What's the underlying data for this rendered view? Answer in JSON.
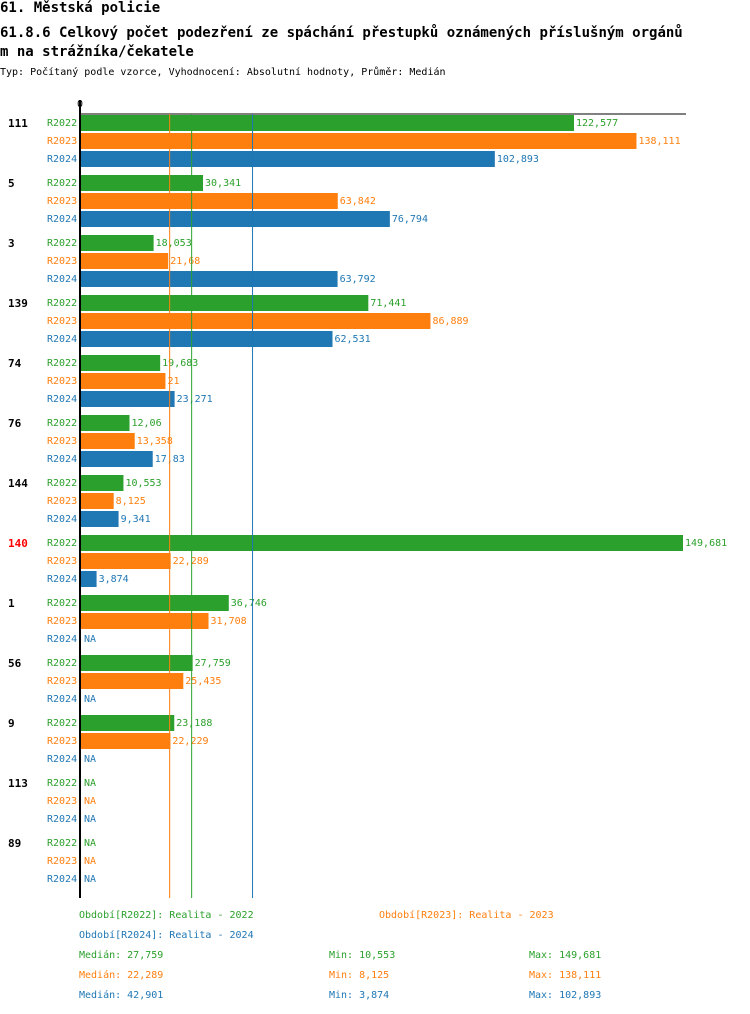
{
  "header": {
    "section": "61. Městská policie",
    "title_line1": "61.8.6 Celkový počet podezření ze spáchání přestupků oznámených příslušným orgánů",
    "title_line2": "m na strážníka/čekatele",
    "subtitle": "Typ: Počítaný podle vzorce, Vyhodnocení: Absolutní hodnoty, Průměr: Medián"
  },
  "colors": {
    "R2022": "#2ca02c",
    "R2023": "#ff7f0e",
    "R2024": "#1f77b4",
    "highlight": "#ff0000"
  },
  "chart_data": {
    "type": "bar",
    "orientation": "horizontal",
    "axis_zero_label": "0",
    "xlim": [
      0,
      149681
    ],
    "series_names": [
      "R2022",
      "R2023",
      "R2024"
    ],
    "groups": [
      {
        "label": "111",
        "highlight": false,
        "values": [
          122577,
          138111,
          102893
        ],
        "labels": [
          "122,577",
          "138,111",
          "102,893"
        ]
      },
      {
        "label": "5",
        "highlight": false,
        "values": [
          30341,
          63842,
          76794
        ],
        "labels": [
          "30,341",
          "63,842",
          "76,794"
        ]
      },
      {
        "label": "3",
        "highlight": false,
        "values": [
          18053,
          21680,
          63792
        ],
        "labels": [
          "18,053",
          "21,68",
          "63,792"
        ]
      },
      {
        "label": "139",
        "highlight": false,
        "values": [
          71441,
          86889,
          62531
        ],
        "labels": [
          "71,441",
          "86,889",
          "62,531"
        ]
      },
      {
        "label": "74",
        "highlight": false,
        "values": [
          19683,
          21000,
          23271
        ],
        "labels": [
          "19,683",
          "21",
          "23,271"
        ]
      },
      {
        "label": "76",
        "highlight": false,
        "values": [
          12060,
          13358,
          17830
        ],
        "labels": [
          "12,06",
          "13,358",
          "17,83"
        ]
      },
      {
        "label": "144",
        "highlight": false,
        "values": [
          10553,
          8125,
          9341
        ],
        "labels": [
          "10,553",
          "8,125",
          "9,341"
        ]
      },
      {
        "label": "140",
        "highlight": true,
        "values": [
          149681,
          22289,
          3874
        ],
        "labels": [
          "149,681",
          "22,289",
          "3,874"
        ]
      },
      {
        "label": "1",
        "highlight": false,
        "values": [
          36746,
          31708,
          null
        ],
        "labels": [
          "36,746",
          "31,708",
          "NA"
        ]
      },
      {
        "label": "56",
        "highlight": false,
        "values": [
          27759,
          25435,
          null
        ],
        "labels": [
          "27,759",
          "25,435",
          "NA"
        ]
      },
      {
        "label": "9",
        "highlight": false,
        "values": [
          23188,
          22229,
          null
        ],
        "labels": [
          "23,188",
          "22,229",
          "NA"
        ]
      },
      {
        "label": "113",
        "highlight": false,
        "values": [
          null,
          null,
          null
        ],
        "labels": [
          "NA",
          "NA",
          "NA"
        ]
      },
      {
        "label": "89",
        "highlight": false,
        "values": [
          null,
          null,
          null
        ],
        "labels": [
          "NA",
          "NA",
          "NA"
        ]
      }
    ],
    "median_lines": [
      {
        "series": "R2022",
        "value": 27759
      },
      {
        "series": "R2023",
        "value": 22289
      },
      {
        "series": "R2024",
        "value": 42901
      }
    ]
  },
  "legend": {
    "r2022": "Období[R2022]: Realita - 2022",
    "r2023": "Období[R2023]: Realita - 2023",
    "r2024": "Období[R2024]: Realita - 2024"
  },
  "stats": {
    "r2022": {
      "median": "Medián: 27,759",
      "min": "Min: 10,553",
      "max": "Max: 149,681"
    },
    "r2023": {
      "median": "Medián: 22,289",
      "min": "Min: 8,125",
      "max": "Max: 138,111"
    },
    "r2024": {
      "median": "Medián: 42,901",
      "min": "Min: 3,874",
      "max": "Max: 102,893"
    }
  }
}
